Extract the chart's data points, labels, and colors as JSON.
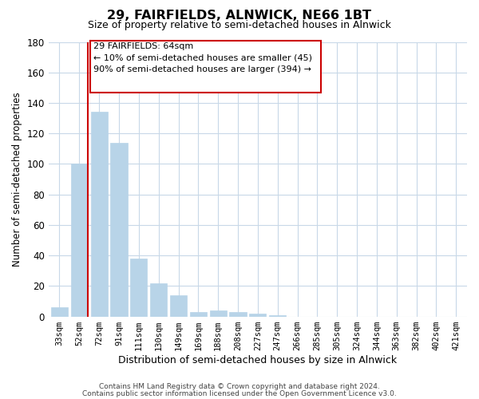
{
  "title": "29, FAIRFIELDS, ALNWICK, NE66 1BT",
  "subtitle": "Size of property relative to semi-detached houses in Alnwick",
  "xlabel": "Distribution of semi-detached houses by size in Alnwick",
  "ylabel": "Number of semi-detached properties",
  "bar_labels": [
    "33sqm",
    "52sqm",
    "72sqm",
    "91sqm",
    "111sqm",
    "130sqm",
    "149sqm",
    "169sqm",
    "188sqm",
    "208sqm",
    "227sqm",
    "247sqm",
    "266sqm",
    "285sqm",
    "305sqm",
    "324sqm",
    "344sqm",
    "363sqm",
    "382sqm",
    "402sqm",
    "421sqm"
  ],
  "bar_values": [
    6,
    100,
    134,
    114,
    38,
    22,
    14,
    3,
    4,
    3,
    2,
    1,
    0,
    0,
    0,
    0,
    0,
    0,
    0,
    0,
    0
  ],
  "bar_color": "#b8d4e8",
  "bar_edge_color": "#b8d4e8",
  "ylim": [
    0,
    180
  ],
  "yticks": [
    0,
    20,
    40,
    60,
    80,
    100,
    120,
    140,
    160,
    180
  ],
  "property_line_color": "#cc0000",
  "annotation_title": "29 FAIRFIELDS: 64sqm",
  "annotation_line1": "← 10% of semi-detached houses are smaller (45)",
  "annotation_line2": "90% of semi-detached houses are larger (394) →",
  "footer_line1": "Contains HM Land Registry data © Crown copyright and database right 2024.",
  "footer_line2": "Contains public sector information licensed under the Open Government Licence v3.0.",
  "bg_color": "#ffffff",
  "grid_color": "#c8d8e8"
}
